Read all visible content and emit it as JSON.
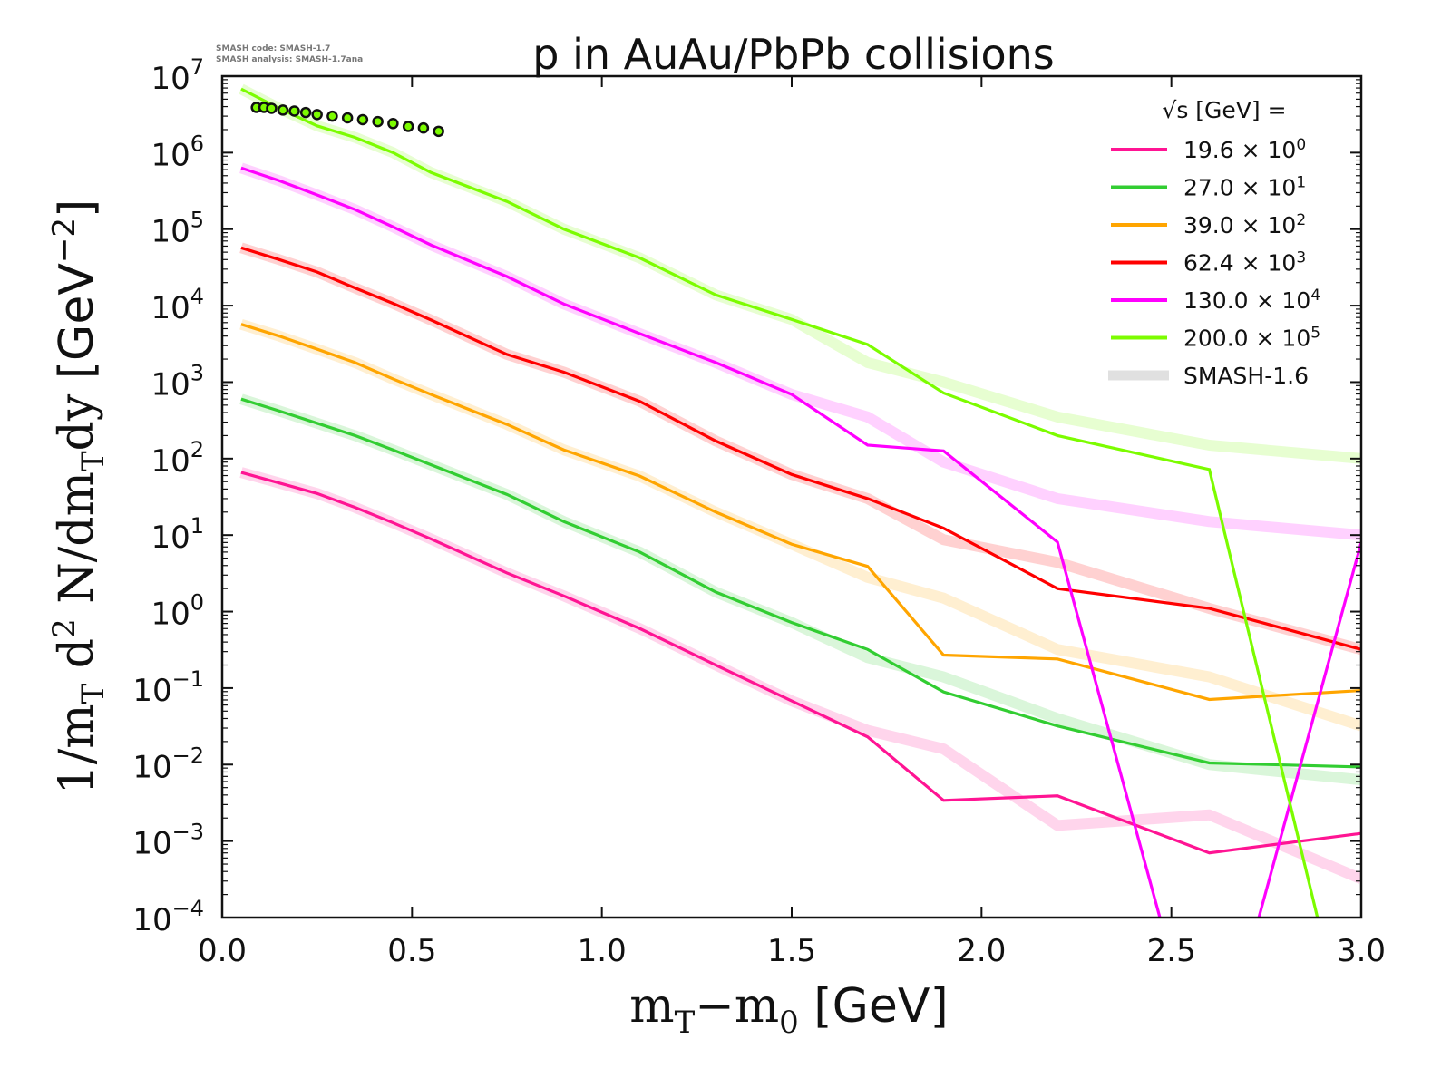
{
  "chart_data": {
    "type": "line",
    "title": "p in AuAu/PbPb collisions",
    "meta": [
      "SMASH code:      SMASH-1.7",
      "SMASH analysis: SMASH-1.7ana"
    ],
    "xlabel_parts": [
      "m",
      "T",
      "−m",
      "0",
      " [GeV]"
    ],
    "ylabel_parts": [
      "1/m",
      "T",
      " d",
      "2",
      " N/dm",
      "T",
      "dy ",
      "[GeV",
      "−2",
      "]"
    ],
    "xlim": [
      0.0,
      3.0
    ],
    "ylim": [
      0.0001,
      10000000.0
    ],
    "yscale": "log",
    "grid": false,
    "x_ticks": [
      "0.0",
      "0.5",
      "1.0",
      "1.5",
      "2.0",
      "2.5",
      "3.0"
    ],
    "y_tick_exponents": [
      "7",
      "6",
      "5",
      "4",
      "3",
      "2",
      "1",
      "0",
      "−1",
      "−2",
      "−3",
      "−4"
    ],
    "y_tick_base": "10",
    "legend": {
      "placement": "top-right",
      "title": "√s  [GeV] =",
      "ref_label": "SMASH-1.6"
    },
    "x": [
      0.05,
      0.15,
      0.25,
      0.35,
      0.45,
      0.55,
      0.75,
      0.9,
      1.1,
      1.3,
      1.5,
      1.7,
      1.9,
      2.2,
      2.6,
      3.0
    ],
    "series": [
      {
        "name": "19.6",
        "scale": "× 10",
        "exp": "0",
        "color": "#ff1493",
        "values": [
          66,
          48,
          35,
          23,
          14.5,
          8.9,
          3.2,
          1.6,
          0.6,
          0.2,
          0.068,
          0.023,
          0.0034,
          0.0039,
          0.0007,
          0.00126
        ],
        "ref": [
          66,
          48,
          35,
          23,
          14.5,
          8.9,
          3.2,
          1.6,
          0.6,
          0.2,
          0.068,
          0.028,
          0.016,
          0.0016,
          0.0022,
          0.00032
        ]
      },
      {
        "name": "27.0",
        "scale": "× 10",
        "exp": "1",
        "color": "#32cd32",
        "values": [
          600,
          420,
          290,
          200,
          130,
          83,
          34,
          15,
          6,
          1.8,
          0.72,
          0.32,
          0.089,
          0.032,
          0.0105,
          0.0093
        ],
        "ref": [
          600,
          420,
          290,
          200,
          130,
          83,
          34,
          15,
          6,
          1.8,
          0.72,
          0.25,
          0.14,
          0.04,
          0.01,
          0.0063
        ]
      },
      {
        "name": "39.0",
        "scale": "× 10",
        "exp": "2",
        "color": "#ffa500",
        "values": [
          5700,
          4000,
          2700,
          1800,
          1100,
          690,
          280,
          130,
          59,
          20,
          7.6,
          3.9,
          0.27,
          0.24,
          0.071,
          0.093
        ],
        "ref": [
          5700,
          4000,
          2700,
          1800,
          1100,
          690,
          280,
          130,
          59,
          20,
          7.6,
          2.8,
          1.5,
          0.32,
          0.14,
          0.032
        ]
      },
      {
        "name": "62.4",
        "scale": "× 10",
        "exp": "3",
        "color": "#ff0000",
        "values": [
          57000,
          40000,
          27500,
          17000,
          10700,
          6500,
          2300,
          1350,
          560,
          170,
          62,
          30,
          12.3,
          2.0,
          1.1,
          0.32
        ],
        "ref": [
          57000,
          40000,
          27500,
          17000,
          10700,
          6500,
          2300,
          1350,
          560,
          170,
          62,
          30,
          8.7,
          4.4,
          1.1,
          0.32
        ]
      },
      {
        "name": "130.0",
        "scale": "× 10",
        "exp": "4",
        "color": "#ff00ff",
        "values": [
          630000,
          430000,
          280000,
          180000,
          107000,
          62000,
          24000,
          10500,
          4300,
          1800,
          690,
          150,
          126,
          8.1,
          0,
          8
        ],
        "ref": [
          630000,
          430000,
          280000,
          180000,
          107000,
          62000,
          24000,
          10500,
          4300,
          1800,
          690,
          350,
          90,
          30,
          15,
          10
        ]
      },
      {
        "name": "200.0",
        "scale": "× 10",
        "exp": "5",
        "color": "#7cfc00",
        "values": [
          6800000,
          3800000,
          2240000,
          1580000,
          1000000,
          550000,
          230000,
          100000,
          42000,
          13800,
          6600,
          3100,
          720,
          200,
          72,
          0
        ],
        "ref": [
          6800000,
          3800000,
          2240000,
          1580000,
          1000000,
          550000,
          230000,
          100000,
          42000,
          13800,
          6600,
          1800,
          1000,
          350,
          150,
          100
        ]
      }
    ],
    "experimental_points": {
      "color": "#7cfc00",
      "x": [
        0.09,
        0.11,
        0.13,
        0.16,
        0.19,
        0.22,
        0.25,
        0.29,
        0.33,
        0.37,
        0.41,
        0.45,
        0.49,
        0.53,
        0.57
      ],
      "y": [
        3900000.0,
        3900000.0,
        3800000.0,
        3600000.0,
        3500000.0,
        3350000.0,
        3150000.0,
        3000000.0,
        2850000.0,
        2700000.0,
        2550000.0,
        2400000.0,
        2200000.0,
        2100000.0,
        1900000.0
      ]
    }
  }
}
